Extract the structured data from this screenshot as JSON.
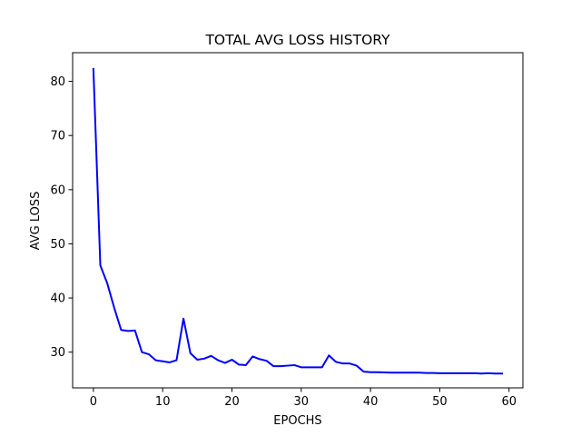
{
  "chart_data": {
    "type": "line",
    "title": "TOTAL AVG LOSS HISTORY",
    "xlabel": "EPOCHS",
    "ylabel": "AVG LOSS",
    "xlim": [
      -3,
      62
    ],
    "ylim": [
      23.4,
      85.3
    ],
    "xticks": [
      0,
      10,
      20,
      30,
      40,
      50,
      60
    ],
    "yticks": [
      30,
      40,
      50,
      60,
      70,
      80
    ],
    "grid": false,
    "legend": "none",
    "series": [
      {
        "color": "#0000ff",
        "x": [
          0,
          1,
          2,
          3,
          4,
          5,
          6,
          7,
          8,
          9,
          10,
          11,
          12,
          13,
          14,
          15,
          16,
          17,
          18,
          19,
          20,
          21,
          22,
          23,
          24,
          25,
          26,
          27,
          28,
          29,
          30,
          31,
          32,
          33,
          34,
          35,
          36,
          37,
          38,
          39,
          40,
          41,
          42,
          43,
          44,
          45,
          46,
          47,
          48,
          49,
          50,
          51,
          52,
          53,
          54,
          55,
          56,
          57,
          58,
          59
        ],
        "y": [
          82.3,
          46.0,
          42.7,
          38.2,
          34.1,
          33.9,
          34.0,
          30.0,
          29.6,
          28.5,
          28.3,
          28.1,
          28.5,
          36.2,
          29.8,
          28.6,
          28.8,
          29.3,
          28.5,
          28.0,
          28.6,
          27.7,
          27.6,
          29.2,
          28.7,
          28.4,
          27.4,
          27.4,
          27.5,
          27.6,
          27.2,
          27.2,
          27.2,
          27.2,
          29.4,
          28.2,
          27.9,
          27.9,
          27.5,
          26.4,
          26.3,
          26.3,
          26.25,
          26.2,
          26.2,
          26.2,
          26.2,
          26.2,
          26.15,
          26.15,
          26.1,
          26.1,
          26.1,
          26.1,
          26.1,
          26.1,
          26.05,
          26.1,
          26.05,
          26.05
        ]
      }
    ]
  },
  "colors": {
    "line": "#0000ff",
    "axes": "#000000",
    "background": "#ffffff"
  }
}
